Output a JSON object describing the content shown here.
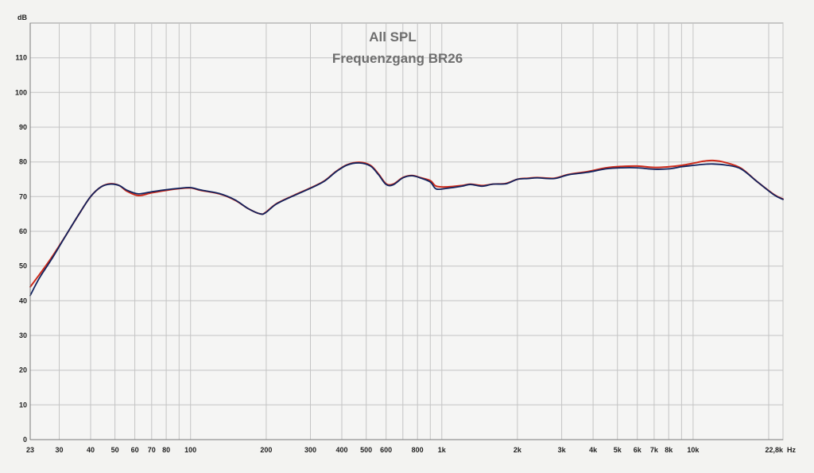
{
  "chart_data": {
    "type": "line",
    "title": "All SPL",
    "subtitle": "Frequenzgang BR26",
    "ylabel": "dB",
    "xunit": "Hz",
    "x_scale": "log",
    "xlim": [
      23,
      22800
    ],
    "ylim": [
      0,
      120
    ],
    "grid": true,
    "legend": "none",
    "y_ticks": [
      {
        "value": 0,
        "label": "0"
      },
      {
        "value": 10,
        "label": "10"
      },
      {
        "value": 20,
        "label": "20"
      },
      {
        "value": 30,
        "label": "30"
      },
      {
        "value": 40,
        "label": "40"
      },
      {
        "value": 50,
        "label": "50"
      },
      {
        "value": 60,
        "label": "60"
      },
      {
        "value": 70,
        "label": "70"
      },
      {
        "value": 80,
        "label": "80"
      },
      {
        "value": 90,
        "label": "90"
      },
      {
        "value": 100,
        "label": "100"
      },
      {
        "value": 110,
        "label": "110"
      }
    ],
    "x_ticks": [
      {
        "value": 23,
        "label": "23"
      },
      {
        "value": 30,
        "label": "30"
      },
      {
        "value": 40,
        "label": "40"
      },
      {
        "value": 50,
        "label": "50"
      },
      {
        "value": 60,
        "label": "60"
      },
      {
        "value": 70,
        "label": "70"
      },
      {
        "value": 80,
        "label": "80"
      },
      {
        "value": 100,
        "label": "100"
      },
      {
        "value": 200,
        "label": "200"
      },
      {
        "value": 300,
        "label": "300"
      },
      {
        "value": 400,
        "label": "400"
      },
      {
        "value": 500,
        "label": "500"
      },
      {
        "value": 600,
        "label": "600"
      },
      {
        "value": 800,
        "label": "800"
      },
      {
        "value": 1000,
        "label": "1k"
      },
      {
        "value": 2000,
        "label": "2k"
      },
      {
        "value": 3000,
        "label": "3k"
      },
      {
        "value": 4000,
        "label": "4k"
      },
      {
        "value": 5000,
        "label": "5k"
      },
      {
        "value": 6000,
        "label": "6k"
      },
      {
        "value": 7000,
        "label": "7k"
      },
      {
        "value": 8000,
        "label": "8k"
      },
      {
        "value": 10000,
        "label": "10k"
      },
      {
        "value": 22800,
        "label": "22,8k"
      }
    ],
    "x_gridlines": [
      23,
      30,
      40,
      50,
      60,
      70,
      80,
      90,
      100,
      200,
      300,
      400,
      500,
      600,
      700,
      800,
      900,
      1000,
      2000,
      3000,
      4000,
      5000,
      6000,
      7000,
      8000,
      9000,
      10000,
      20000,
      22800
    ],
    "series": [
      {
        "color": "#cc2a1a",
        "points": [
          [
            23,
            44
          ],
          [
            25,
            47.5
          ],
          [
            28,
            52.5
          ],
          [
            32,
            59
          ],
          [
            36,
            65
          ],
          [
            40,
            70
          ],
          [
            44,
            72.8
          ],
          [
            48,
            73.7
          ],
          [
            52,
            73.2
          ],
          [
            56,
            71.5
          ],
          [
            62,
            70.3
          ],
          [
            70,
            71.1
          ],
          [
            80,
            71.8
          ],
          [
            90,
            72.3
          ],
          [
            100,
            72.5
          ],
          [
            110,
            71.8
          ],
          [
            130,
            70.8
          ],
          [
            150,
            69
          ],
          [
            170,
            66.5
          ],
          [
            190,
            65
          ],
          [
            200,
            65.6
          ],
          [
            220,
            68
          ],
          [
            260,
            70.5
          ],
          [
            300,
            72.5
          ],
          [
            340,
            74.5
          ],
          [
            380,
            77.3
          ],
          [
            420,
            79.2
          ],
          [
            470,
            79.9
          ],
          [
            520,
            79
          ],
          [
            560,
            76.5
          ],
          [
            600,
            73.7
          ],
          [
            640,
            73.6
          ],
          [
            700,
            75.5
          ],
          [
            760,
            76.1
          ],
          [
            820,
            75.5
          ],
          [
            900,
            74.6
          ],
          [
            950,
            73
          ],
          [
            1050,
            72.8
          ],
          [
            1200,
            73.2
          ],
          [
            1300,
            73.6
          ],
          [
            1450,
            73.2
          ],
          [
            1600,
            73.6
          ],
          [
            1800,
            73.8
          ],
          [
            2000,
            75
          ],
          [
            2200,
            75.3
          ],
          [
            2400,
            75.5
          ],
          [
            2800,
            75.3
          ],
          [
            3200,
            76.4
          ],
          [
            3800,
            77.2
          ],
          [
            4500,
            78.3
          ],
          [
            5200,
            78.7
          ],
          [
            6000,
            78.8
          ],
          [
            7000,
            78.4
          ],
          [
            8000,
            78.6
          ],
          [
            9000,
            79
          ],
          [
            10000,
            79.6
          ],
          [
            11000,
            80.2
          ],
          [
            12000,
            80.4
          ],
          [
            13500,
            79.8
          ],
          [
            15500,
            78.2
          ],
          [
            18000,
            74.3
          ],
          [
            21000,
            70.6
          ],
          [
            22800,
            69.3
          ]
        ]
      },
      {
        "color": "#12235e",
        "points": [
          [
            23,
            41.5
          ],
          [
            25,
            46.5
          ],
          [
            28,
            52
          ],
          [
            32,
            59
          ],
          [
            36,
            65
          ],
          [
            40,
            70
          ],
          [
            44,
            72.8
          ],
          [
            48,
            73.6
          ],
          [
            52,
            73.2
          ],
          [
            56,
            71.8
          ],
          [
            62,
            70.8
          ],
          [
            70,
            71.4
          ],
          [
            80,
            72
          ],
          [
            90,
            72.4
          ],
          [
            100,
            72.6
          ],
          [
            110,
            71.9
          ],
          [
            130,
            70.9
          ],
          [
            150,
            69.1
          ],
          [
            170,
            66.5
          ],
          [
            190,
            65
          ],
          [
            200,
            65.5
          ],
          [
            220,
            67.9
          ],
          [
            260,
            70.4
          ],
          [
            300,
            72.4
          ],
          [
            340,
            74.4
          ],
          [
            380,
            77.2
          ],
          [
            420,
            79.1
          ],
          [
            470,
            79.7
          ],
          [
            520,
            78.8
          ],
          [
            560,
            76.3
          ],
          [
            600,
            73.5
          ],
          [
            640,
            73.4
          ],
          [
            700,
            75.4
          ],
          [
            760,
            76
          ],
          [
            820,
            75.4
          ],
          [
            900,
            74.2
          ],
          [
            950,
            72.2
          ],
          [
            1050,
            72.4
          ],
          [
            1200,
            73
          ],
          [
            1300,
            73.5
          ],
          [
            1450,
            73
          ],
          [
            1600,
            73.6
          ],
          [
            1800,
            73.7
          ],
          [
            2000,
            75
          ],
          [
            2200,
            75.2
          ],
          [
            2400,
            75.4
          ],
          [
            2800,
            75.2
          ],
          [
            3200,
            76.3
          ],
          [
            3800,
            77
          ],
          [
            4500,
            78
          ],
          [
            5200,
            78.3
          ],
          [
            6000,
            78.3
          ],
          [
            7000,
            77.9
          ],
          [
            8000,
            78
          ],
          [
            9000,
            78.6
          ],
          [
            10000,
            79
          ],
          [
            11000,
            79.3
          ],
          [
            12000,
            79.4
          ],
          [
            13500,
            79.1
          ],
          [
            15500,
            78
          ],
          [
            18000,
            74.3
          ],
          [
            21000,
            70.5
          ],
          [
            22800,
            69.2
          ]
        ]
      }
    ]
  }
}
